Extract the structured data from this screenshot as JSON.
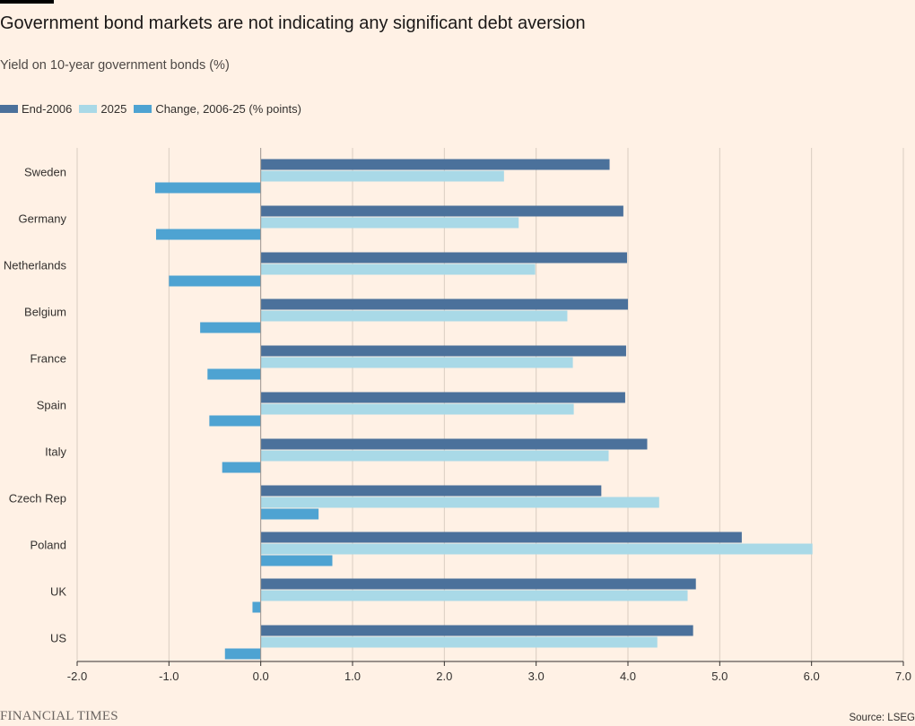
{
  "header": {
    "title": "Government bond markets are not indicating any significant debt aversion",
    "subtitle": "Yield on 10-year government bonds (%)"
  },
  "legend": [
    {
      "label": "End-2006",
      "color": "#4b719b"
    },
    {
      "label": "2025",
      "color": "#a9d9e7"
    },
    {
      "label": "Change, 2006-25 (% points)",
      "color": "#4ea3d2"
    }
  ],
  "footer": {
    "brand": "FINANCIAL TIMES",
    "source": "Source: LSEG"
  },
  "chart_data": {
    "type": "bar",
    "orientation": "horizontal",
    "categories": [
      "Sweden",
      "Germany",
      "Netherlands",
      "Belgium",
      "France",
      "Spain",
      "Italy",
      "Czech Rep",
      "Poland",
      "UK",
      "US"
    ],
    "series": [
      {
        "name": "End-2006",
        "color": "#4b719b",
        "values": [
          3.8,
          3.95,
          3.99,
          4.0,
          3.98,
          3.97,
          4.21,
          3.71,
          5.24,
          4.74,
          4.71
        ]
      },
      {
        "name": "2025",
        "color": "#a9d9e7",
        "values": [
          2.65,
          2.81,
          2.99,
          3.34,
          3.4,
          3.41,
          3.79,
          4.34,
          6.01,
          4.65,
          4.32
        ]
      },
      {
        "name": "Change, 2006-25 (% points)",
        "color": "#4ea3d2",
        "values": [
          -1.15,
          -1.14,
          -1.0,
          -0.66,
          -0.58,
          -0.56,
          -0.42,
          0.63,
          0.78,
          -0.09,
          -0.39
        ]
      }
    ],
    "xlim": [
      -2.0,
      7.0
    ],
    "xticks": [
      "-2.0",
      "-1.0",
      "0.0",
      "1.0",
      "2.0",
      "3.0",
      "4.0",
      "5.0",
      "6.0",
      "7.0"
    ],
    "xlabel": "",
    "ylabel": "",
    "grid": "vertical"
  }
}
